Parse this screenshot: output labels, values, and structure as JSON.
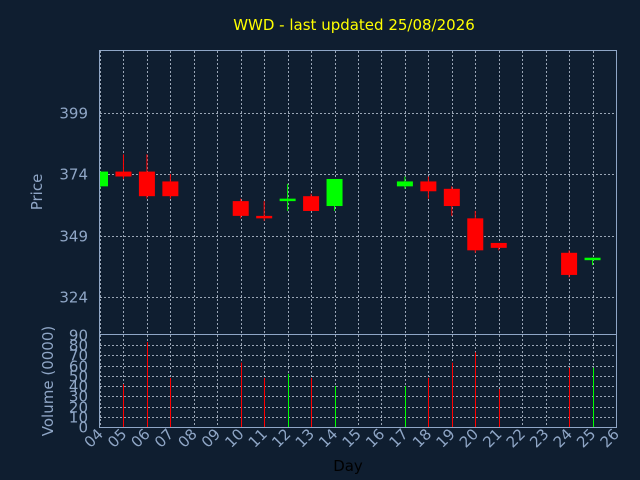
{
  "chart_data": [
    {
      "type": "candlestick",
      "title": "WWD - last updated 25/08/2026",
      "ylabel": "Price",
      "ylim": [
        309,
        424
      ],
      "yticks": [
        324,
        349,
        374,
        399
      ],
      "x_range": [
        4,
        26
      ],
      "colors": {
        "up": "#00ff00",
        "down": "#ff0000",
        "grid": "#9aa6b6",
        "frame": "#8fa6c6"
      },
      "grid": true,
      "candles": [
        {
          "day": "04",
          "open": 369,
          "high": 375,
          "low": 368,
          "close": 375
        },
        {
          "day": "05",
          "open": 375,
          "high": 382,
          "low": 372,
          "close": 373
        },
        {
          "day": "06",
          "open": 375,
          "high": 382,
          "low": 364,
          "close": 365
        },
        {
          "day": "07",
          "open": 371,
          "high": 374,
          "low": 364,
          "close": 365
        },
        {
          "day": "10",
          "open": 363,
          "high": 364,
          "low": 356,
          "close": 357
        },
        {
          "day": "11",
          "open": 357,
          "high": 363,
          "low": 355,
          "close": 356
        },
        {
          "day": "12",
          "open": 363,
          "high": 370,
          "low": 359,
          "close": 364
        },
        {
          "day": "13",
          "open": 365,
          "high": 366,
          "low": 359,
          "close": 359
        },
        {
          "day": "14",
          "open": 361,
          "high": 372,
          "low": 359,
          "close": 372
        },
        {
          "day": "17",
          "open": 369,
          "high": 373,
          "low": 368,
          "close": 371
        },
        {
          "day": "18",
          "open": 371,
          "high": 373,
          "low": 364,
          "close": 367
        },
        {
          "day": "19",
          "open": 368,
          "high": 369,
          "low": 357,
          "close": 361
        },
        {
          "day": "20",
          "open": 356,
          "high": 359,
          "low": 342,
          "close": 343
        },
        {
          "day": "21",
          "open": 346,
          "high": 346,
          "low": 343,
          "close": 344
        },
        {
          "day": "24",
          "open": 342,
          "high": 343,
          "low": 332,
          "close": 333
        },
        {
          "day": "25",
          "open": 339,
          "high": 340,
          "low": 337,
          "close": 340
        }
      ]
    },
    {
      "type": "bar",
      "ylabel": "Volume (0000)",
      "xlabel": "Day",
      "ylim": [
        0,
        90
      ],
      "yticks": [
        0,
        10,
        20,
        30,
        40,
        50,
        60,
        70,
        80,
        90
      ],
      "categories": [
        "04",
        "05",
        "06",
        "07",
        "08",
        "09",
        "10",
        "11",
        "12",
        "13",
        "14",
        "15",
        "16",
        "17",
        "18",
        "19",
        "20",
        "21",
        "22",
        "23",
        "24",
        "25",
        "26"
      ],
      "bars": [
        {
          "day": "05",
          "value": 42,
          "color": "#ff0000"
        },
        {
          "day": "06",
          "value": 83,
          "color": "#ff0000"
        },
        {
          "day": "07",
          "value": 48,
          "color": "#ff0000"
        },
        {
          "day": "10",
          "value": 63,
          "color": "#ff0000"
        },
        {
          "day": "11",
          "value": 48,
          "color": "#ff0000"
        },
        {
          "day": "12",
          "value": 52,
          "color": "#00ff00"
        },
        {
          "day": "13",
          "value": 48,
          "color": "#ff0000"
        },
        {
          "day": "14",
          "value": 40,
          "color": "#00ff00"
        },
        {
          "day": "17",
          "value": 40,
          "color": "#00ff00"
        },
        {
          "day": "18",
          "value": 48,
          "color": "#ff0000"
        },
        {
          "day": "19",
          "value": 63,
          "color": "#ff0000"
        },
        {
          "day": "20",
          "value": 73,
          "color": "#ff0000"
        },
        {
          "day": "21",
          "value": 37,
          "color": "#ff0000"
        },
        {
          "day": "24",
          "value": 58,
          "color": "#ff0000"
        },
        {
          "day": "25",
          "value": 58,
          "color": "#00ff00"
        }
      ]
    }
  ]
}
